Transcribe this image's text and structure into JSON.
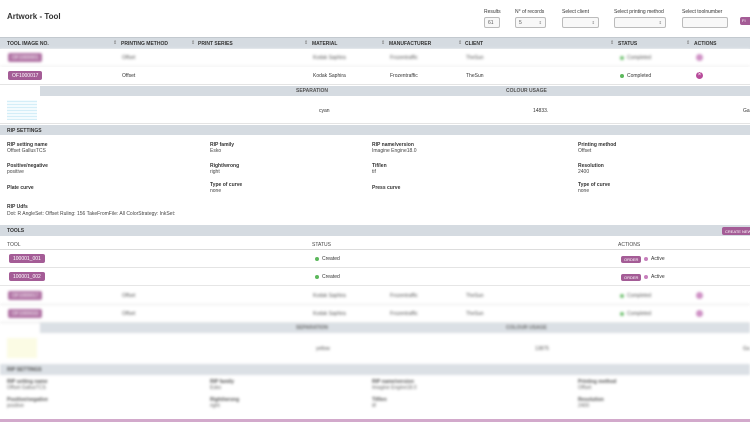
{
  "page": {
    "title": "Artwork - Tool"
  },
  "filters": {
    "results": {
      "label": "Results",
      "value": "61"
    },
    "records": {
      "label": "N° of records",
      "value": "5"
    },
    "client": {
      "label": "Select client",
      "value": ""
    },
    "printing_method": {
      "label": "Select printing method",
      "value": ""
    },
    "toolnumber": {
      "label": "Select toolnumber",
      "value": ""
    },
    "button": "FI"
  },
  "table": {
    "headers": [
      "TOOL IMAGE NO.",
      "PRINTING METHOD",
      "PRINT SERIES",
      "MATERIAL",
      "MANUFACTURER",
      "CLIENT",
      "STATUS",
      "ACTIONS"
    ],
    "rows": [
      {
        "tool_no": "OF1000001",
        "printing_method": "Offset",
        "print_series": "",
        "material": "Kodak Saphira",
        "manufacturer": "Frozentraffic",
        "client": "TheSun",
        "status": "Completed"
      },
      {
        "tool_no": "OF1000017",
        "printing_method": "Offset",
        "print_series": "",
        "material": "Kodak Saphira",
        "manufacturer": "Frozentraffic",
        "client": "TheSun",
        "status": "Completed"
      }
    ]
  },
  "separation": {
    "headers": [
      "SEPARATION",
      "COLOUR USAGE"
    ],
    "color": "cyan",
    "usage": "14833.",
    "extra": "Ga"
  },
  "rip": {
    "title": "RIP SETTINGS",
    "fields": [
      {
        "key": "RIP setting name",
        "value": "Offset GallusTCS"
      },
      {
        "key": "RIP family",
        "value": "Esko"
      },
      {
        "key": "RIP name/version",
        "value": "Imagine Engine18.0"
      },
      {
        "key": "Printing method",
        "value": "Offset"
      },
      {
        "key": "Positive/negative",
        "value": "positive"
      },
      {
        "key": "Right/wrong",
        "value": "right"
      },
      {
        "key": "Tif/len",
        "value": "tif"
      },
      {
        "key": "Resolution",
        "value": "2400"
      },
      {
        "key": "Plate curve",
        "value": ""
      },
      {
        "key": "Type of curve",
        "value": "none"
      },
      {
        "key": "Press curve",
        "value": ""
      },
      {
        "key": "Type of curve",
        "value": "none"
      }
    ],
    "udfs_label": "RIP Udfs",
    "udfs_value": "Dot: R AngleSet: Offset Ruling: 156 TakeFromFile: All ColorStrategy: InkSet:"
  },
  "tools": {
    "title": "TOOLS",
    "create_button": "CREATE NEW",
    "headers": [
      "TOOL",
      "STATUS",
      "ACTIONS"
    ],
    "rows": [
      {
        "tool": "100001_001",
        "status": "Created",
        "order": "ORDER",
        "active": "Active"
      },
      {
        "tool": "100001_002",
        "status": "Created",
        "order": "ORDER",
        "active": "Active"
      }
    ]
  },
  "blurred": {
    "rows": [
      {
        "tool_no": "OF1000017",
        "printing_method": "Offset",
        "material": "Kodak Saphira",
        "manufacturer": "Frozentraffic",
        "client": "TheSun",
        "status": "Completed"
      },
      {
        "tool_no": "OF1000033",
        "printing_method": "Offset",
        "material": "Kodak Saphira",
        "manufacturer": "Frozentraffic",
        "client": "TheSun",
        "status": "Completed"
      }
    ],
    "separation": {
      "header": "SEPARATION",
      "usage_header": "COLOUR USAGE",
      "color": "yellow",
      "usage": "13875",
      "extra": "Ga"
    },
    "rip_title": "RIP SETTINGS",
    "fields": [
      {
        "key": "RIP setting name",
        "value": "Offset GallusTCS"
      },
      {
        "key": "RIP family",
        "value": "Esko"
      },
      {
        "key": "RIP name/version",
        "value": "Imagine Engine18.0"
      },
      {
        "key": "Printing method",
        "value": "Offset"
      },
      {
        "key": "Positive/negative",
        "value": "positive"
      },
      {
        "key": "Right/wrong",
        "value": "right"
      },
      {
        "key": "Tif/len",
        "value": "tif"
      },
      {
        "key": "Resolution",
        "value": "2400"
      }
    ]
  }
}
